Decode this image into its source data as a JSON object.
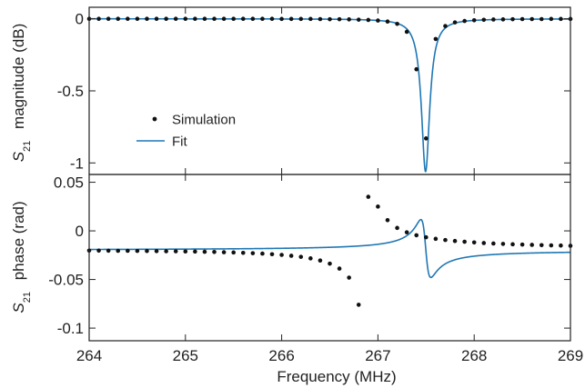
{
  "chart_data": {
    "type": "line",
    "x_axis": {
      "label": "Frequency (MHz)",
      "range": [
        264,
        269
      ],
      "ticks": [
        264,
        265,
        266,
        267,
        268,
        269
      ],
      "tick_labels": [
        "264",
        "265",
        "266",
        "267",
        "268",
        "269"
      ]
    },
    "legend": {
      "position": "lower-left of top panel",
      "entries": [
        {
          "label": "Simulation",
          "marker": "dot",
          "color": "#111111"
        },
        {
          "label": "Fit",
          "marker": "line",
          "color": "#1f77b4"
        }
      ]
    },
    "colors": {
      "fit": "#1f77b4",
      "simulation": "#111111"
    },
    "panels": [
      {
        "id": "magnitude",
        "ylabel_sym": "S",
        "ylabel_sub": "21",
        "ylabel_rest": "magnitude (dB)",
        "ylim": [
          -1.08,
          0.08
        ],
        "y_ticks": [
          0,
          -0.5,
          -1
        ],
        "y_tick_labels": [
          "0",
          "-0.5",
          "-1"
        ],
        "fit": {
          "model": "lorentzian_dip",
          "f0": 267.495,
          "half_width": 0.052,
          "depth": 1.06
        },
        "simulation": {
          "x": [
            264.0,
            264.1,
            264.2,
            264.3,
            264.4,
            264.5,
            264.6,
            264.7,
            264.8,
            264.9,
            265.0,
            265.1,
            265.2,
            265.3,
            265.4,
            265.5,
            265.6,
            265.7,
            265.8,
            265.9,
            266.0,
            266.1,
            266.2,
            266.3,
            266.4,
            266.5,
            266.6,
            266.7,
            266.8,
            266.9,
            267.0,
            267.1,
            267.2,
            267.3,
            267.4,
            267.5,
            267.6,
            267.7,
            267.8,
            267.9,
            268.0,
            268.1,
            268.2,
            268.3,
            268.4,
            268.5,
            268.6,
            268.7,
            268.8,
            268.9,
            269.0
          ],
          "y": [
            0.0,
            0.0,
            0.0,
            0.0,
            0.0,
            0.0,
            0.0,
            0.0,
            0.0,
            0.0,
            0.0,
            0.0,
            0.0,
            0.0,
            0.0,
            0.0,
            0.0,
            0.0,
            0.0,
            0.0,
            -0.001,
            -0.001,
            -0.001,
            -0.001,
            -0.002,
            -0.003,
            -0.003,
            -0.004,
            -0.006,
            -0.008,
            -0.012,
            -0.019,
            -0.035,
            -0.09,
            -0.35,
            -0.83,
            -0.14,
            -0.05,
            -0.025,
            -0.015,
            -0.01,
            -0.007,
            -0.005,
            -0.004,
            -0.003,
            -0.002,
            -0.002,
            -0.002,
            -0.001,
            -0.001,
            -0.001
          ]
        }
      },
      {
        "id": "phase",
        "ylabel_sym": "S",
        "ylabel_sub": "21",
        "ylabel_rest": "phase (rad)",
        "ylim": [
          -0.113,
          0.058
        ],
        "y_ticks": [
          0.05,
          0,
          -0.05,
          -0.1
        ],
        "y_tick_labels": [
          "0.05",
          "0",
          "-0.05",
          "-0.1"
        ],
        "fit": {
          "model": "fano",
          "baseline": -0.02,
          "f0": 267.495,
          "half_width": 0.052,
          "amplitude": 0.0595,
          "phase_offset": 0.062
        },
        "simulation": {
          "x": [
            264.0,
            264.1,
            264.2,
            264.3,
            264.4,
            264.5,
            264.6,
            264.7,
            264.8,
            264.9,
            265.0,
            265.1,
            265.2,
            265.3,
            265.4,
            265.5,
            265.6,
            265.7,
            265.8,
            265.9,
            266.0,
            266.1,
            266.2,
            266.3,
            266.4,
            266.5,
            266.6,
            266.7,
            266.8,
            266.9,
            267.0,
            267.1,
            267.2,
            267.3,
            267.4,
            267.5,
            267.6,
            267.7,
            267.8,
            267.9,
            268.0,
            268.1,
            268.2,
            268.3,
            268.4,
            268.5,
            268.6,
            268.7,
            268.8,
            268.9,
            269.0
          ],
          "y": [
            -0.0203,
            -0.0203,
            -0.0204,
            -0.0205,
            -0.0205,
            -0.0206,
            -0.0207,
            -0.0208,
            -0.0209,
            -0.021,
            -0.0212,
            -0.0213,
            -0.0215,
            -0.0217,
            -0.022,
            -0.0222,
            -0.0226,
            -0.023,
            -0.0234,
            -0.024,
            -0.0247,
            -0.0256,
            -0.0267,
            -0.0283,
            -0.0305,
            -0.0337,
            -0.0388,
            -0.0481,
            -0.076,
            0.035,
            0.025,
            0.011,
            0.003,
            -0.0015,
            -0.0045,
            -0.0066,
            -0.0082,
            -0.0094,
            -0.0104,
            -0.0112,
            -0.0119,
            -0.0125,
            -0.013,
            -0.0134,
            -0.0138,
            -0.0141,
            -0.0144,
            -0.0147,
            -0.0149,
            -0.0151,
            -0.0153
          ]
        }
      }
    ]
  }
}
